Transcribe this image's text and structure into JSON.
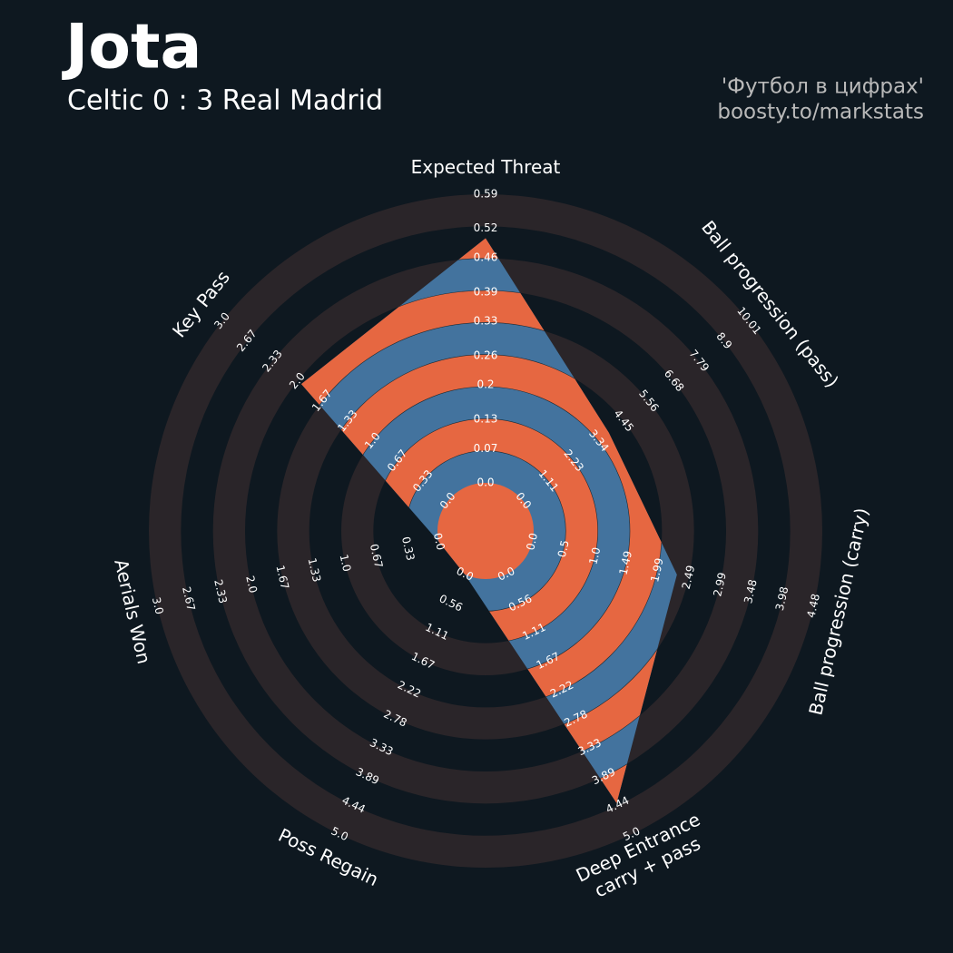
{
  "chart_data": {
    "type": "radar",
    "title": "Jota",
    "subtitle": "Celtic 0 : 3 Real Madrid",
    "credits": [
      "'Футбол в цифрах'",
      "boosty.to/markstats"
    ],
    "params": [
      {
        "name": [
          "Expected Threat"
        ],
        "lim": [
          0,
          0.59
        ],
        "ticks": [
          {
            "value": 0,
            "label": "0.0"
          },
          0.07,
          0.13,
          0.2,
          0.26,
          0.33,
          0.39,
          0.46,
          0.52,
          0.59
        ]
      },
      {
        "name": [
          "Ball progression (pass)"
        ],
        "lim": [
          0,
          10.01
        ],
        "ticks": [
          {
            "value": 0,
            "label": "0.0"
          },
          1.11,
          2.23,
          3.34,
          4.45,
          5.56,
          6.68,
          7.79,
          8.9,
          10.01
        ]
      },
      {
        "name": [
          "Ball progression (carry)"
        ],
        "lim": [
          0,
          4.48
        ],
        "ticks": [
          {
            "value": 0,
            "label": "0.0"
          },
          0.5,
          {
            "value": 1,
            "label": "1.0"
          },
          1.49,
          1.99,
          2.49,
          2.99,
          3.48,
          3.98,
          4.48
        ]
      },
      {
        "name": [
          "Deep Entrance",
          "carry + pass"
        ],
        "lim": [
          0,
          5
        ],
        "ticks": [
          {
            "value": 0,
            "label": "0.0"
          },
          0.56,
          1.11,
          1.67,
          2.22,
          2.78,
          3.33,
          3.89,
          4.44,
          {
            "value": 5,
            "label": "5.0"
          }
        ]
      },
      {
        "name": [
          "Poss Regain"
        ],
        "lim": [
          0,
          5
        ],
        "ticks": [
          {
            "value": 0,
            "label": "0.0"
          },
          0.56,
          1.11,
          1.67,
          2.22,
          2.78,
          3.33,
          3.89,
          4.44,
          {
            "value": 5,
            "label": "5.0"
          }
        ]
      },
      {
        "name": [
          "Aerials Won"
        ],
        "lim": [
          0,
          3
        ],
        "ticks": [
          {
            "value": 0,
            "label": "0.0"
          },
          0.33,
          0.67,
          {
            "value": 1,
            "label": "1.0"
          },
          1.33,
          1.67,
          {
            "value": 2,
            "label": "2.0"
          },
          2.33,
          2.67,
          {
            "value": 3,
            "label": "3.0"
          }
        ]
      },
      {
        "name": [
          "Key Pass"
        ],
        "lim": [
          0,
          3
        ],
        "ticks": [
          {
            "value": 0,
            "label": "0.0"
          },
          0.33,
          0.67,
          {
            "value": 1,
            "label": "1.0"
          },
          1.33,
          1.67,
          {
            "value": 2,
            "label": "2.0"
          },
          2.33,
          2.67,
          {
            "value": 3,
            "label": "3.0"
          }
        ]
      }
    ],
    "values": [
      0.5,
      3.8,
      2.3,
      4.4,
      0,
      0,
      1.95
    ],
    "color": "#43739e",
    "alt_color": "#e66741",
    "ring_color": "#2a2529"
  }
}
